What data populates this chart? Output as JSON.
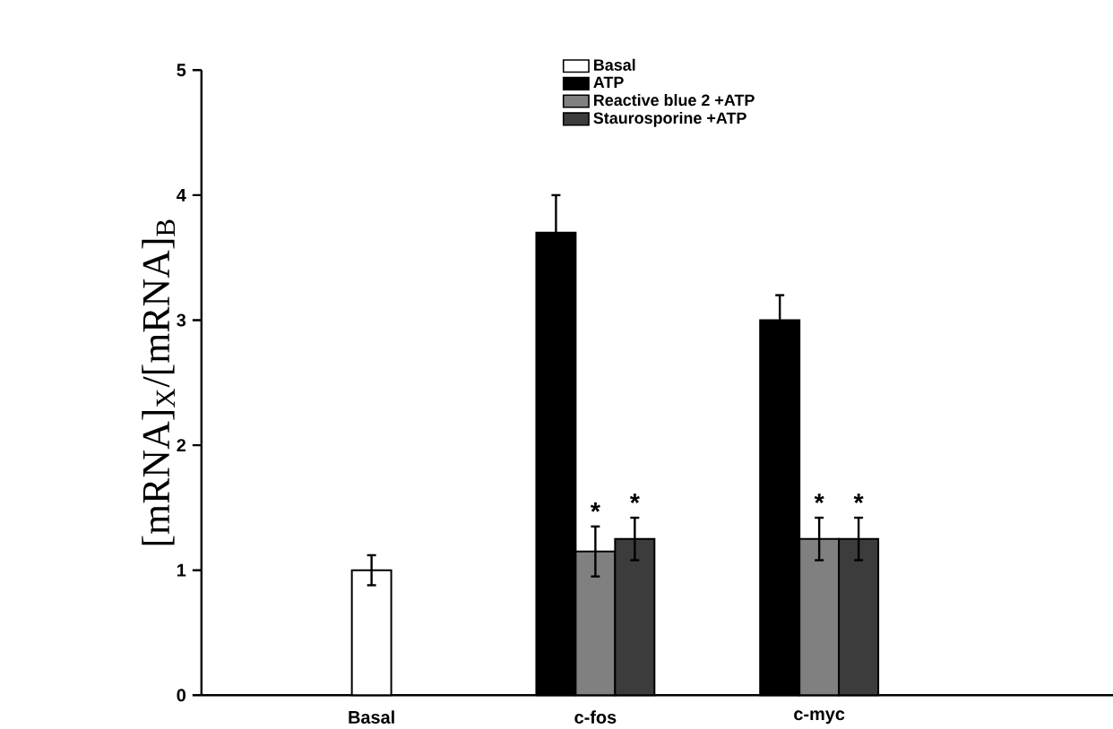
{
  "chart_data": {
    "type": "bar",
    "ylabel": "[mRNA]$_{X}$/[mRNA]$_{B}$",
    "categories": [
      "Basal",
      "c-fos",
      "c-myc"
    ],
    "series": [
      {
        "name": "Basal",
        "color": "#ffffff",
        "values": [
          1.0,
          null,
          null
        ],
        "errors": [
          0.12,
          null,
          null
        ]
      },
      {
        "name": "ATP",
        "color": "#000000",
        "values": [
          null,
          3.7,
          3.0
        ],
        "errors": [
          null,
          0.3,
          0.2
        ]
      },
      {
        "name": "Reactive blue 2 +ATP",
        "color": "#808080",
        "values": [
          null,
          1.15,
          1.25
        ],
        "errors": [
          null,
          0.2,
          0.17
        ]
      },
      {
        "name": "Staurosporine +ATP",
        "color": "#3c3c3c",
        "values": [
          null,
          1.25,
          1.25
        ],
        "errors": [
          null,
          0.17,
          0.17
        ]
      }
    ],
    "ylim": [
      0,
      5
    ],
    "yticks": [
      0,
      1,
      2,
      3,
      4,
      5
    ],
    "legend": "top",
    "annotations": [
      "*",
      "*",
      "*",
      "*"
    ]
  }
}
